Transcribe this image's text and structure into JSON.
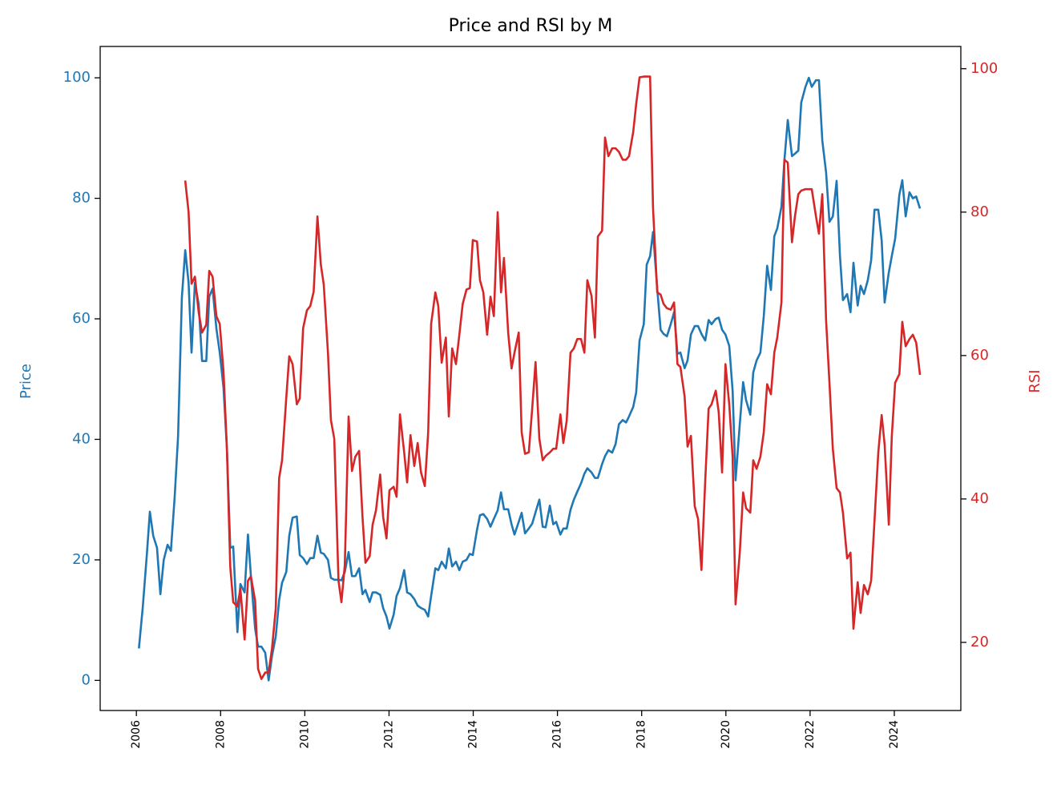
{
  "chart_data": {
    "type": "line",
    "title": "Price and RSI by M",
    "y_label": "Price",
    "y2_label": "RSI",
    "x": [
      2006.06,
      2006.15,
      2006.25,
      2006.32,
      2006.4,
      2006.49,
      2006.57,
      2006.65,
      2006.74,
      2006.82,
      2006.91,
      2006.99,
      2007.08,
      2007.16,
      2007.24,
      2007.31,
      2007.39,
      2007.48,
      2007.56,
      2007.66,
      2007.73,
      2007.81,
      2007.9,
      2007.98,
      2008.07,
      2008.15,
      2008.23,
      2008.3,
      2008.4,
      2008.47,
      2008.57,
      2008.65,
      2008.72,
      2008.82,
      2008.89,
      2008.97,
      2009.06,
      2009.14,
      2009.22,
      2009.31,
      2009.39,
      2009.46,
      2009.56,
      2009.63,
      2009.71,
      2009.81,
      2009.88,
      2009.96,
      2010.05,
      2010.13,
      2010.21,
      2010.3,
      2010.38,
      2010.45,
      2010.55,
      2010.62,
      2010.7,
      2010.8,
      2010.87,
      2010.95,
      2011.04,
      2011.12,
      2011.2,
      2011.29,
      2011.37,
      2011.44,
      2011.54,
      2011.61,
      2011.69,
      2011.79,
      2011.86,
      2011.94,
      2012.01,
      2012.11,
      2012.18,
      2012.26,
      2012.36,
      2012.43,
      2012.51,
      2012.6,
      2012.68,
      2012.76,
      2012.85,
      2012.93,
      2013.0,
      2013.1,
      2013.17,
      2013.25,
      2013.35,
      2013.42,
      2013.5,
      2013.59,
      2013.67,
      2013.75,
      2013.84,
      2013.92,
      2013.99,
      2014.09,
      2014.16,
      2014.24,
      2014.33,
      2014.41,
      2014.49,
      2014.58,
      2014.66,
      2014.73,
      2014.83,
      2014.91,
      2014.98,
      2015.08,
      2015.15,
      2015.23,
      2015.32,
      2015.4,
      2015.48,
      2015.57,
      2015.65,
      2015.72,
      2015.82,
      2015.9,
      2015.97,
      2016.07,
      2016.14,
      2016.22,
      2016.31,
      2016.39,
      2016.47,
      2016.56,
      2016.64,
      2016.71,
      2016.81,
      2016.89,
      2016.96,
      2017.06,
      2017.13,
      2017.21,
      2017.3,
      2017.38,
      2017.46,
      2017.55,
      2017.63,
      2017.7,
      2017.8,
      2017.87,
      2017.95,
      2018.05,
      2018.12,
      2018.2,
      2018.27,
      2018.37,
      2018.45,
      2018.52,
      2018.6,
      2018.69,
      2018.77,
      2018.85,
      2018.92,
      2019.02,
      2019.09,
      2019.17,
      2019.26,
      2019.34,
      2019.42,
      2019.51,
      2019.59,
      2019.66,
      2019.76,
      2019.83,
      2019.91,
      2019.99,
      2020.08,
      2020.16,
      2020.23,
      2020.33,
      2020.41,
      2020.48,
      2020.58,
      2020.65,
      2020.73,
      2020.82,
      2020.9,
      2020.98,
      2021.07,
      2021.15,
      2021.22,
      2021.32,
      2021.39,
      2021.47,
      2021.57,
      2021.64,
      2021.72,
      2021.79,
      2021.89,
      2021.97,
      2022.04,
      2022.14,
      2022.21,
      2022.29,
      2022.38,
      2022.46,
      2022.54,
      2022.63,
      2022.71,
      2022.78,
      2022.88,
      2022.96,
      2023.03,
      2023.13,
      2023.2,
      2023.28,
      2023.37,
      2023.45,
      2023.53,
      2023.62,
      2023.7,
      2023.77,
      2023.87,
      2023.94,
      2024.02,
      2024.12,
      2024.19,
      2024.27,
      2024.36,
      2024.44,
      2024.52,
      2024.61
    ],
    "series": [
      {
        "name": "Price",
        "color": "#1f77b4",
        "axis": "y",
        "values": [
          5.3,
          12,
          21,
          28,
          24,
          22,
          14.3,
          20,
          22.5,
          21.5,
          30.5,
          40.5,
          63.5,
          71.4,
          66,
          54.4,
          66,
          62.4,
          53,
          53,
          63.7,
          65,
          58.4,
          54.4,
          48.5,
          38.5,
          22,
          22.2,
          8,
          16,
          14.6,
          24.2,
          17.3,
          8.6,
          5.6,
          5.6,
          4.6,
          0,
          4,
          7.3,
          13.3,
          16.2,
          18,
          24,
          27,
          27.2,
          20.8,
          20.3,
          19.3,
          20.3,
          20.3,
          24,
          21.2,
          21,
          20,
          17,
          16.7,
          16.7,
          16.6,
          18,
          21.3,
          17.3,
          17.3,
          18.6,
          14.3,
          15,
          13,
          14.6,
          14.6,
          14.2,
          12,
          10.6,
          8.6,
          10.9,
          14,
          15.3,
          18.3,
          14.6,
          14.3,
          13.5,
          12.4,
          12,
          11.7,
          10.6,
          14,
          18.6,
          18.3,
          19.7,
          18.6,
          21.9,
          18.9,
          19.7,
          18.3,
          19.7,
          20,
          21,
          20.8,
          25,
          27.4,
          27.6,
          26.8,
          25.5,
          26.8,
          28.2,
          31.2,
          28.4,
          28.4,
          25.9,
          24.2,
          26.3,
          27.8,
          24.4,
          25.2,
          26,
          27.9,
          30,
          25.5,
          25.4,
          29,
          25.9,
          26.3,
          24.2,
          25.2,
          25.2,
          28.3,
          30,
          31.3,
          32.7,
          34.3,
          35.2,
          34.5,
          33.6,
          33.6,
          35.9,
          37.2,
          38.2,
          37.8,
          39.2,
          42.5,
          43.2,
          42.8,
          43.8,
          45.4,
          47.8,
          56.4,
          59.1,
          69,
          70.4,
          74.4,
          65,
          58.2,
          57.5,
          57.1,
          59.1,
          61.1,
          54.2,
          54.4,
          51.8,
          53.1,
          57.4,
          58.8,
          58.8,
          57.5,
          56.4,
          59.8,
          59.1,
          60,
          60.2,
          58.2,
          57.4,
          55.5,
          48.1,
          33.2,
          42.5,
          49.5,
          46.5,
          44.1,
          51.1,
          53.1,
          54.4,
          60.4,
          68.8,
          64.8,
          73.7,
          75,
          78.6,
          86.3,
          93,
          87,
          87.4,
          87.9,
          95.9,
          98.5,
          100,
          98.5,
          99.6,
          99.6,
          89.6,
          84.3,
          76.1,
          77,
          82.9,
          70.4,
          63.1,
          64.1,
          61.1,
          69.3,
          62.2,
          65.5,
          64.1,
          66.4,
          69.7,
          78.1,
          78.1,
          73,
          62.7,
          67.7,
          70.4,
          73.3,
          80.6,
          83,
          77,
          81,
          80,
          80.3,
          78.3
        ]
      },
      {
        "name": "RSI",
        "color": "#d62728",
        "axis": "y2",
        "values": [
          null,
          null,
          null,
          null,
          null,
          null,
          null,
          null,
          null,
          null,
          null,
          null,
          null,
          84.4,
          80,
          70,
          71,
          66,
          63.2,
          64.3,
          71.8,
          71,
          65.5,
          64.4,
          57.7,
          47,
          30.5,
          25.6,
          25,
          27.5,
          20.4,
          28.6,
          29.2,
          25.8,
          16.3,
          14.9,
          15.8,
          15.8,
          19.1,
          24.7,
          42.9,
          45.4,
          54.1,
          59.9,
          58.8,
          53.2,
          54,
          63.8,
          66.3,
          66.9,
          68.9,
          79.4,
          72.7,
          69.9,
          60.4,
          51,
          48.4,
          28.6,
          25.6,
          30.8,
          51.5,
          43.9,
          45.9,
          46.7,
          37.5,
          31.1,
          32,
          36.4,
          38.4,
          43.4,
          37.5,
          34.5,
          41.2,
          41.7,
          40.3,
          51.8,
          46.5,
          42.3,
          48.9,
          44.6,
          47.8,
          43.7,
          41.8,
          49.3,
          64.4,
          68.8,
          66.9,
          59,
          62.5,
          51.5,
          61,
          58.8,
          62.9,
          67.2,
          69.2,
          69.4,
          76.1,
          75.9,
          70.5,
          68.8,
          62.9,
          68.2,
          65.5,
          80,
          68.8,
          73.6,
          63.2,
          58.2,
          60.4,
          63.2,
          49.3,
          46.3,
          46.5,
          52.6,
          59.1,
          48.4,
          45.4,
          46,
          46.5,
          47,
          47,
          51.8,
          47.8,
          50.9,
          60.4,
          61,
          62.3,
          62.3,
          60.4,
          70.5,
          68.3,
          62.5,
          76.6,
          77.4,
          90.4,
          87.8,
          88.9,
          88.9,
          88.4,
          87.3,
          87.3,
          87.8,
          91.2,
          95.1,
          98.8,
          98.9,
          98.9,
          98.9,
          80.6,
          68.8,
          68.5,
          67.2,
          66.6,
          66.4,
          67.4,
          58.8,
          58.4,
          54.3,
          47.3,
          48.8,
          39,
          37.2,
          30.1,
          42.6,
          52.6,
          53.2,
          55.1,
          52.1,
          43.7,
          58.8,
          53.2,
          45.9,
          25.3,
          32.5,
          40.9,
          38.7,
          38.1,
          45.4,
          44.2,
          45.9,
          49.3,
          56,
          54.6,
          60.4,
          62.5,
          67.4,
          87.3,
          86.9,
          75.8,
          79.4,
          82.5,
          83,
          83.2,
          83.2,
          83.2,
          79.4,
          77,
          82.5,
          64.9,
          56.2,
          47,
          41.5,
          40.9,
          38.1,
          31.7,
          32.5,
          21.9,
          28.4,
          24.1,
          28,
          26.7,
          28.6,
          37,
          46.5,
          51.7,
          47.6,
          36.4,
          48.7,
          56.2,
          57.4,
          64.7,
          61.3,
          62.3,
          62.9,
          61.8,
          57.3
        ]
      }
    ],
    "xlim": [
      2005.14,
      2025.58
    ],
    "xticks": [
      2006,
      2008,
      2010,
      2012,
      2014,
      2016,
      2018,
      2020,
      2022,
      2024
    ],
    "ylim": [
      -5,
      105.2
    ],
    "yticks": [
      0,
      20,
      40,
      60,
      80,
      100
    ],
    "y2lim": [
      10.5,
      103.1
    ],
    "y2ticks": [
      20,
      40,
      60,
      80,
      100
    ],
    "grid": false
  }
}
